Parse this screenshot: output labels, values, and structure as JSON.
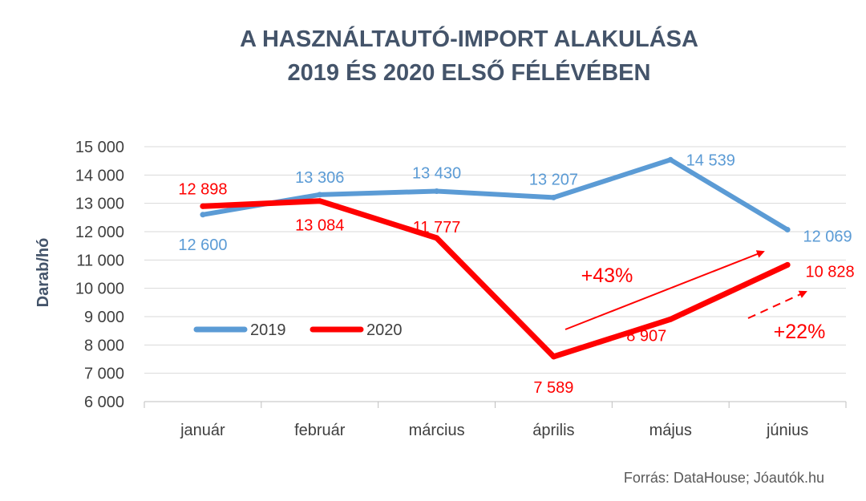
{
  "chart_data": {
    "type": "line",
    "title_lines": [
      "A HASZNÁLTAUTÓ-IMPORT ALAKULÁSA",
      "2019 ÉS 2020 ELSŐ FÉLÉVÉBEN"
    ],
    "ylabel": "Darab/hó",
    "xlabel": "",
    "categories": [
      "január",
      "február",
      "március",
      "április",
      "május",
      "június"
    ],
    "ylim": [
      6000,
      15000
    ],
    "yticks": [
      6000,
      7000,
      8000,
      9000,
      10000,
      11000,
      12000,
      13000,
      14000,
      15000
    ],
    "ytick_labels": [
      "6 000",
      "7 000",
      "8 000",
      "9 000",
      "10 000",
      "11 000",
      "12 000",
      "13 000",
      "14 000",
      "15 000"
    ],
    "grid": true,
    "legend_position": "left",
    "series": [
      {
        "name": "2019",
        "color": "#5b9bd5",
        "values": [
          12600,
          13306,
          13430,
          13207,
          14539,
          12069
        ],
        "labels": [
          "12 600",
          "13 306",
          "13 430",
          "13 207",
          "14 539",
          "12 069"
        ]
      },
      {
        "name": "2020",
        "color": "#ff0000",
        "values": [
          12898,
          13084,
          11777,
          7589,
          8907,
          10828
        ],
        "labels": [
          "12 898",
          "13 084",
          "11 777",
          "7 589",
          "8 907",
          "10 828"
        ]
      }
    ],
    "annotations": [
      {
        "text": "+43%",
        "color": "#ff0000"
      },
      {
        "text": "+22%",
        "color": "#ff0000"
      }
    ],
    "source": "Forrás: DataHouse; Jóautók.hu"
  }
}
